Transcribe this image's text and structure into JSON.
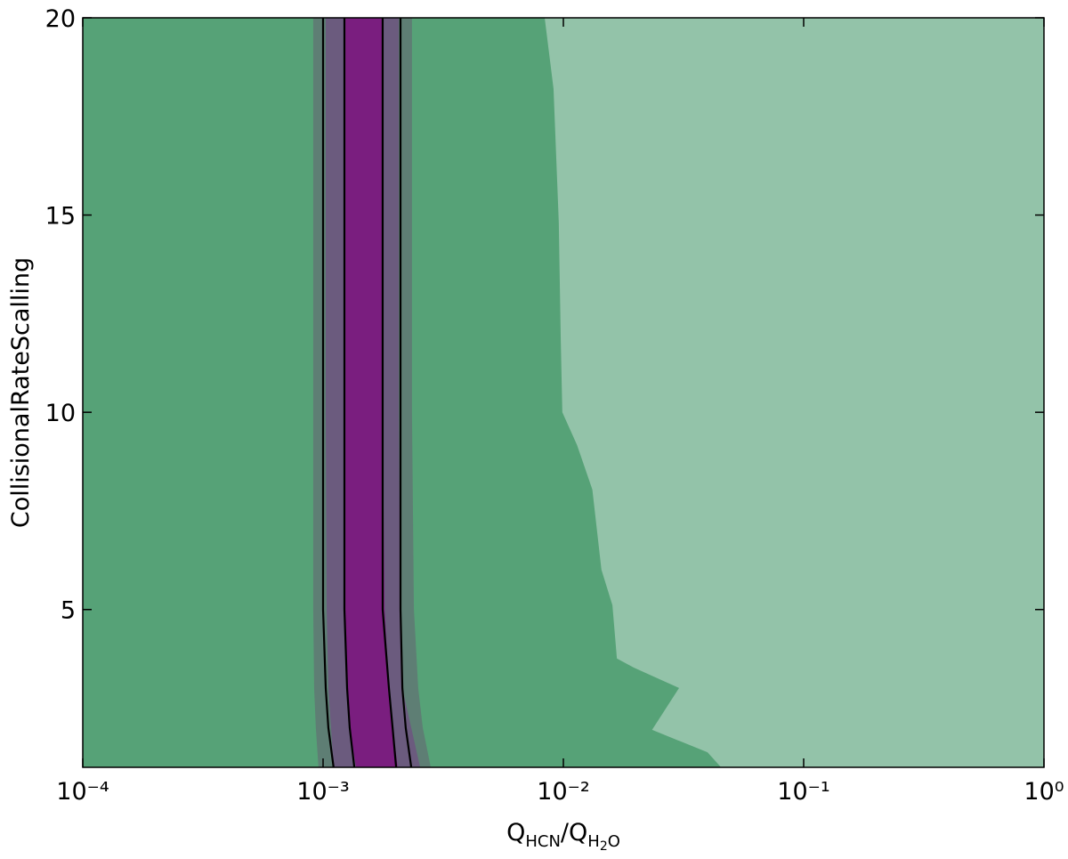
{
  "chart_data": {
    "type": "contour",
    "ylabel": "CollisionalRateScalling",
    "xlabel": [
      {
        "text": "Q",
        "level": 0
      },
      {
        "text": "HCN",
        "level": 1
      },
      {
        "text": "/Q",
        "level": 0
      },
      {
        "text": "H",
        "level": 1
      },
      {
        "text": "2",
        "level": 2
      },
      {
        "text": "O",
        "level": 1
      }
    ],
    "xscale": "log",
    "xlim": [
      0.0001,
      1
    ],
    "ylim": [
      1,
      20
    ],
    "xticks": [
      {
        "value": 0.0001,
        "label": "10⁻⁴"
      },
      {
        "value": 0.001,
        "label": "10⁻³"
      },
      {
        "value": 0.01,
        "label": "10⁻²"
      },
      {
        "value": 0.1,
        "label": "10⁻¹"
      },
      {
        "value": 1,
        "label": "10⁰"
      }
    ],
    "yticks": [
      5,
      10,
      15,
      20
    ],
    "background_color": "#56a277",
    "regions": [
      {
        "color": "#93c3a9",
        "x": [
          0.00836,
          0.0091,
          0.00957,
          0.00975,
          0.0099,
          0.0114,
          0.0132,
          0.0144,
          0.016,
          0.0167,
          0.0196,
          0.0303,
          0.0234,
          0.0398,
          0.0453,
          1,
          1
        ],
        "y": [
          20,
          18.2,
          14.81,
          11.88,
          10,
          9.17,
          8.04,
          6.01,
          5.11,
          3.76,
          3.53,
          3.01,
          1.95,
          1.38,
          1,
          1,
          20
        ]
      },
      {
        "color": "#5e7e74",
        "x": [
          0.00091,
          0.00091,
          0.00091,
          0.000918,
          0.000933,
          0.000957,
          0.002806,
          0.0026,
          0.002489,
          0.002388,
          0.002344,
          0.002344
        ],
        "y": [
          20,
          10,
          5,
          3,
          2,
          1,
          1,
          2,
          3,
          5,
          10,
          20
        ]
      },
      {
        "color": "#6b5b7e",
        "x": [
          0.001026,
          0.001026,
          0.001035,
          0.001052,
          0.001079,
          0.001106,
          0.002535,
          0.002328,
          0.002138,
          0.0021,
          0.002065,
          0.002065
        ],
        "y": [
          20,
          10,
          5,
          3,
          2,
          1,
          1,
          2,
          3,
          5,
          10,
          20
        ]
      },
      {
        "color": "#7a1e7f",
        "x": [
          0.001239,
          0.001239,
          0.001239,
          0.001259,
          0.001291,
          0.001371,
          0.002046,
          0.001947,
          0.00188,
          0.001803,
          0.00177,
          0.00177
        ],
        "y": [
          20,
          10,
          5,
          3,
          2,
          1,
          1,
          2,
          3,
          5,
          10,
          20
        ]
      }
    ],
    "lines": [
      {
        "color": "#000000",
        "x": [
          0.001,
          0.001,
          0.001,
          0.001026,
          0.001052,
          0.001106
        ],
        "y": [
          20,
          10,
          5,
          3,
          2,
          1
        ]
      },
      {
        "color": "#000000",
        "x": [
          0.001227,
          0.001227,
          0.001227,
          0.001259,
          0.001291,
          0.001349
        ],
        "y": [
          20,
          10,
          5,
          3,
          2,
          1
        ]
      },
      {
        "color": "#000000",
        "x": [
          0.00177,
          0.00177,
          0.00177,
          0.00188,
          0.001947,
          0.002014
        ],
        "y": [
          20,
          10,
          5,
          3,
          2,
          1
        ]
      },
      {
        "color": "#000000",
        "x": [
          0.0021,
          0.0021,
          0.0021,
          0.002138,
          0.002208,
          0.002328
        ],
        "y": [
          20,
          10,
          5,
          3,
          2,
          1
        ]
      }
    ]
  }
}
